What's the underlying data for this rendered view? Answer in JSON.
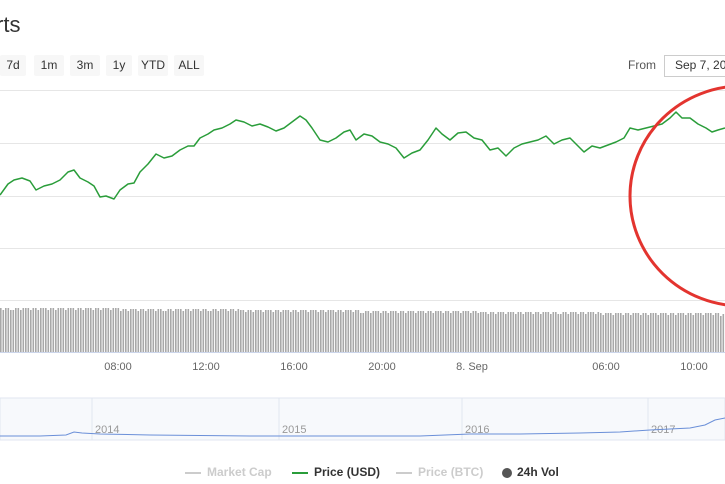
{
  "header": {
    "title": "rts"
  },
  "range_buttons": [
    "7d",
    "1m",
    "3m",
    "1y",
    "YTD",
    "ALL"
  ],
  "date_range": {
    "from_label": "From",
    "from_value": "Sep 7, 20"
  },
  "x_axis_labels": [
    "08:00",
    "12:00",
    "16:00",
    "20:00",
    "8. Sep",
    "06:00",
    "10:00"
  ],
  "navigator_labels": [
    "2014",
    "2015",
    "2016",
    "2017"
  ],
  "legend": [
    "Market Cap",
    "Price (USD)",
    "Price (BTC)",
    "24h Vol"
  ]
}
